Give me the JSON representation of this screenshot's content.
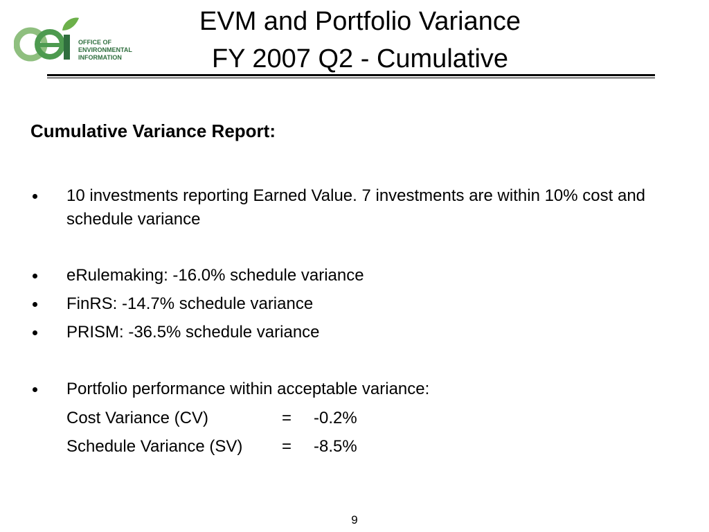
{
  "logo": {
    "lines": [
      "OFFICE OF",
      "ENVIRONMENTAL",
      "INFORMATION"
    ]
  },
  "title": {
    "lines": [
      "EVM and Portfolio Variance",
      "FY 2007 Q2 - Cumulative"
    ]
  },
  "heading": "Cumulative Variance Report:",
  "bullets": [
    "10 investments reporting Earned Value.  7 investments are within 10% cost and schedule variance",
    "eRulemaking:  -16.0% schedule variance",
    "FinRS:  -14.7% schedule variance",
    "PRISM: -36.5% schedule variance",
    "Portfolio performance within acceptable variance:"
  ],
  "portfolio": {
    "rows": [
      [
        "Cost Variance (CV)",
        "=",
        "-0.2%"
      ],
      [
        "Schedule Variance (SV)",
        "=",
        "-8.5%"
      ]
    ]
  },
  "page_number": "9"
}
